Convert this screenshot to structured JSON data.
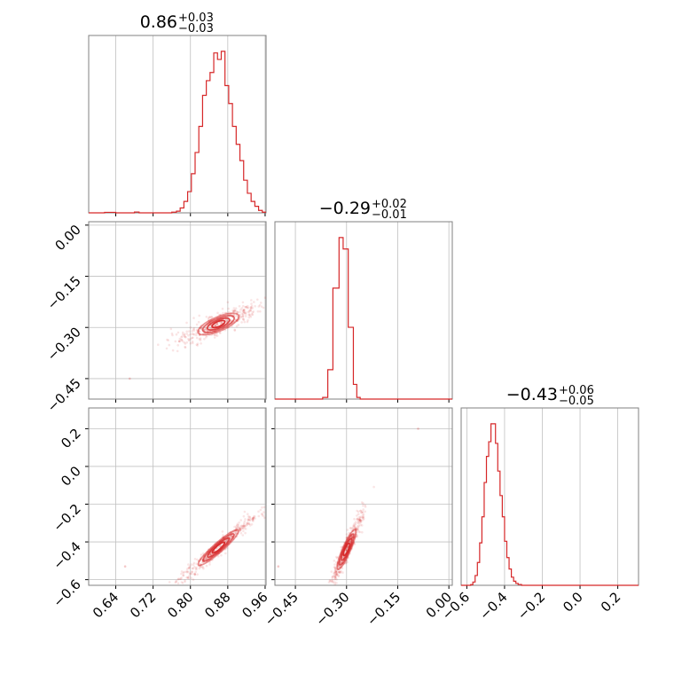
{
  "chart_data": {
    "type": "corner",
    "color": "#d62728",
    "grid": true,
    "titles": [
      {
        "value": "0.86",
        "plus": "+0.03",
        "minus": "−0.03"
      },
      {
        "value": "−0.29",
        "plus": "+0.02",
        "minus": "−0.01"
      },
      {
        "value": "−0.43",
        "plus": "+0.06",
        "minus": "−0.05"
      }
    ],
    "params": [
      {
        "range": [
          0.582,
          0.962
        ],
        "ticks": [
          0.64,
          0.72,
          0.8,
          0.88,
          0.96
        ],
        "tick_labels": [
          "0.64",
          "0.72",
          "0.80",
          "0.88",
          "0.96"
        ]
      },
      {
        "range": [
          -0.51,
          0.01
        ],
        "ticks": [
          -0.45,
          -0.3,
          -0.15,
          0.0
        ],
        "tick_labels": [
          "−0.45",
          "−0.30",
          "−0.15",
          "0.00"
        ]
      },
      {
        "range": [
          -0.63,
          0.31
        ],
        "ticks": [
          -0.6,
          -0.4,
          -0.2,
          0.0,
          0.2
        ],
        "tick_labels": [
          "−0.6",
          "−0.4",
          "−0.2",
          "0.0",
          "0.2"
        ]
      }
    ],
    "histograms": [
      {
        "param": 0,
        "bins": [
          [
            0.582,
            0
          ],
          [
            0.616,
            0.003
          ],
          [
            0.64,
            0
          ],
          [
            0.68,
            0.005
          ],
          [
            0.69,
            0
          ],
          [
            0.76,
            0.004
          ],
          [
            0.77,
            0.01
          ],
          [
            0.778,
            0.03
          ],
          [
            0.786,
            0.07
          ],
          [
            0.794,
            0.13
          ],
          [
            0.802,
            0.24
          ],
          [
            0.81,
            0.37
          ],
          [
            0.818,
            0.53
          ],
          [
            0.826,
            0.72
          ],
          [
            0.834,
            0.81
          ],
          [
            0.842,
            0.86
          ],
          [
            0.85,
            0.98
          ],
          [
            0.858,
            0.94
          ],
          [
            0.866,
            0.99
          ],
          [
            0.874,
            0.78
          ],
          [
            0.882,
            0.67
          ],
          [
            0.89,
            0.53
          ],
          [
            0.898,
            0.42
          ],
          [
            0.906,
            0.32
          ],
          [
            0.914,
            0.2
          ],
          [
            0.922,
            0.12
          ],
          [
            0.93,
            0.07
          ],
          [
            0.938,
            0.04
          ],
          [
            0.946,
            0.015
          ],
          [
            0.954,
            0.004
          ]
        ]
      },
      {
        "param": 1,
        "bins": [
          [
            -0.51,
            0
          ],
          [
            -0.37,
            0.01
          ],
          [
            -0.355,
            0.18
          ],
          [
            -0.34,
            0.68
          ],
          [
            -0.322,
            0.99
          ],
          [
            -0.31,
            0.92
          ],
          [
            -0.295,
            0.44
          ],
          [
            -0.28,
            0.09
          ],
          [
            -0.27,
            0.01
          ],
          [
            -0.26,
            0
          ]
        ]
      },
      {
        "param": 2,
        "bins": [
          [
            -0.63,
            0
          ],
          [
            -0.58,
            0.004
          ],
          [
            -0.568,
            0.02
          ],
          [
            -0.556,
            0.06
          ],
          [
            -0.544,
            0.14
          ],
          [
            -0.532,
            0.26
          ],
          [
            -0.52,
            0.42
          ],
          [
            -0.508,
            0.63
          ],
          [
            -0.496,
            0.79
          ],
          [
            -0.484,
            0.88
          ],
          [
            -0.472,
            0.99
          ],
          [
            -0.46,
            0.99
          ],
          [
            -0.448,
            0.87
          ],
          [
            -0.436,
            0.7
          ],
          [
            -0.424,
            0.55
          ],
          [
            -0.412,
            0.42
          ],
          [
            -0.4,
            0.27
          ],
          [
            -0.388,
            0.17
          ],
          [
            -0.376,
            0.1
          ],
          [
            -0.364,
            0.05
          ],
          [
            -0.352,
            0.025
          ],
          [
            -0.34,
            0.012
          ],
          [
            -0.328,
            0.005
          ],
          [
            -0.31,
            0
          ]
        ]
      }
    ],
    "pairs": [
      {
        "x": 0,
        "y": 1,
        "center": [
          0.86,
          -0.29
        ],
        "axis_end": [
          0.955,
          -0.235
        ],
        "width": 0.016,
        "levels": [
          0.5,
          1.0,
          1.5,
          2.0
        ],
        "scatter_extent": [
          0.78,
          0.96
        ],
        "outliers": [
          [
            0.67,
            -0.45
          ]
        ]
      },
      {
        "x": 0,
        "y": 2,
        "center": [
          0.86,
          -0.43
        ],
        "axis_end": [
          0.955,
          -0.225
        ],
        "width": 0.018,
        "levels": [
          0.5,
          1.0,
          1.5,
          2.0
        ],
        "scatter_extent": [
          0.76,
          0.96
        ],
        "outliers": [
          [
            0.66,
            -0.53
          ]
        ]
      },
      {
        "x": 1,
        "y": 2,
        "center": [
          -0.3,
          -0.44
        ],
        "axis_end": [
          -0.245,
          -0.21
        ],
        "width": 0.014,
        "levels": [
          0.5,
          1.0,
          1.5,
          2.0
        ],
        "scatter_extent": [
          -0.36,
          -0.22
        ],
        "outliers": [
          [
            -0.09,
            0.2
          ],
          [
            -0.5,
            -0.53
          ]
        ]
      }
    ]
  }
}
